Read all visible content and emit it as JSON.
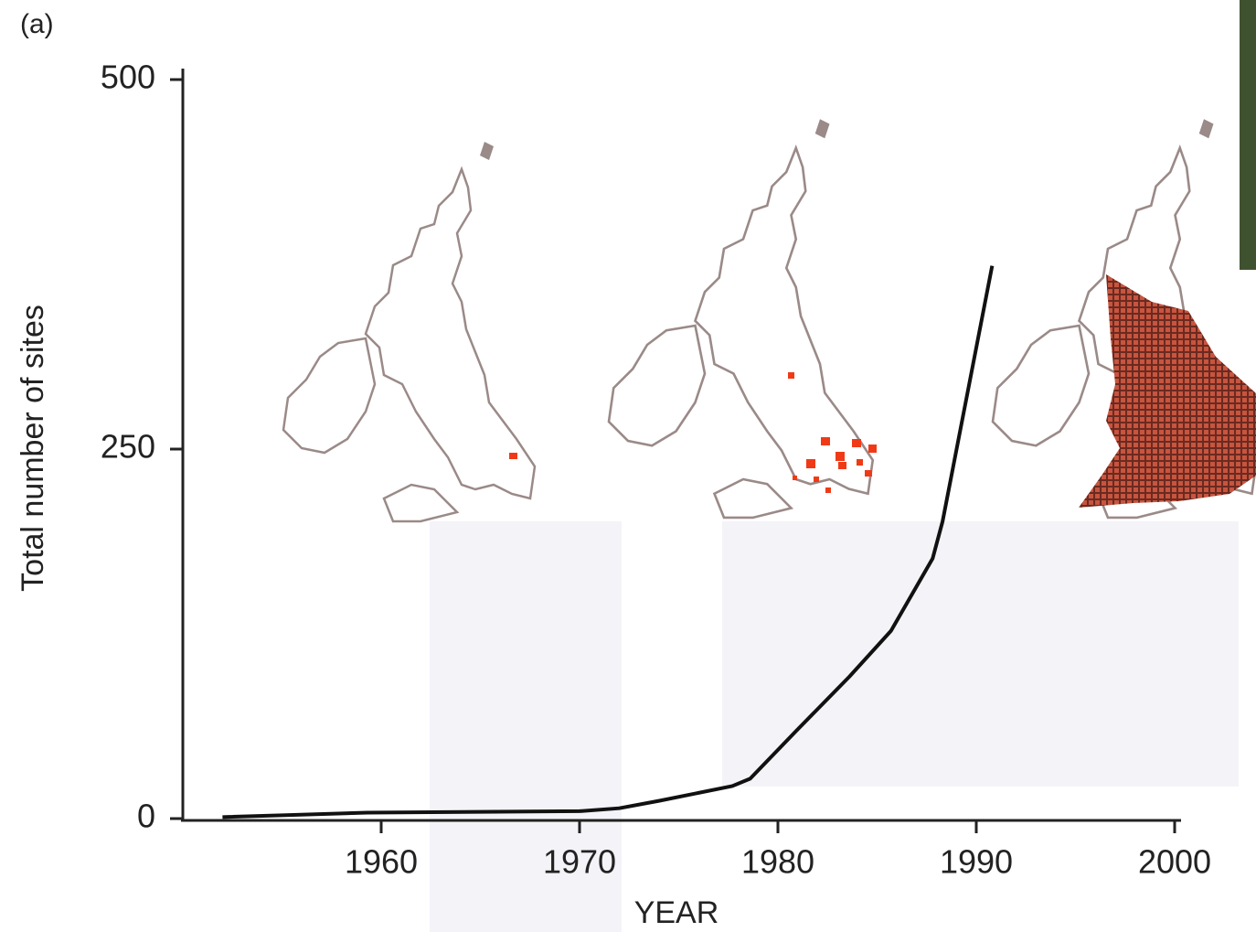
{
  "chart_data": {
    "type": "line",
    "panel_label": "(a)",
    "x_label": "YEAR",
    "y_label": "Total number of sites",
    "x": [
      1952,
      1959.3,
      1970,
      1972,
      1974,
      1977.7,
      1978.6,
      1980.9,
      1983.6,
      1985.7,
      1987.8,
      1988.3,
      1990.8
    ],
    "series": [
      {
        "color": "#111111",
        "values": [
          1,
          4,
          5,
          7,
          12,
          22,
          27,
          59,
          96,
          127,
          176,
          201,
          374
        ]
      }
    ],
    "xlim": [
      1950,
      2000
    ],
    "xticks": [
      1960,
      1970,
      1980,
      1990,
      2000
    ],
    "ylim": [
      0,
      500
    ],
    "yticks": [
      0,
      250,
      500
    ]
  }
}
